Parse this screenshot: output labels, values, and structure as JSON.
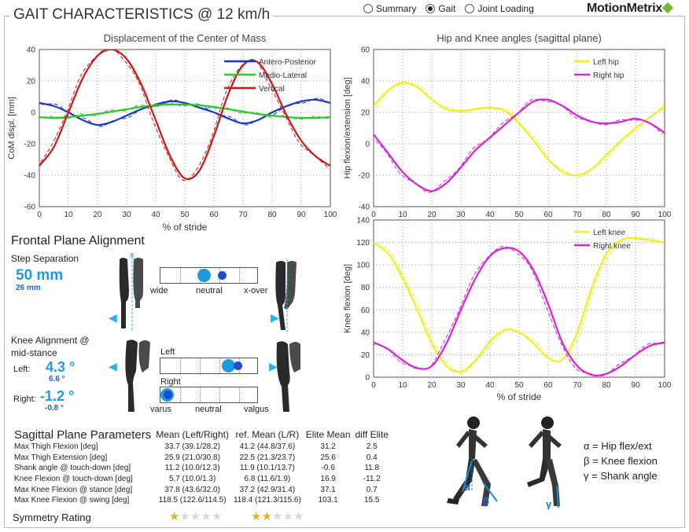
{
  "title": "GAIT CHARACTERISTICS @ 12 km/h",
  "views": [
    "Summary",
    "Gait",
    "Joint Loading"
  ],
  "selected_view": "Gait",
  "logo": "MotionMetrix",
  "charts": [
    {
      "type": "line",
      "title": "Displacement of the Center of Mass",
      "xlabel": "% of stride",
      "ylabel": "CoM displ. [mm]",
      "xlim": [
        0,
        100
      ],
      "ylim": [
        -60,
        40
      ],
      "xticks": [
        "0",
        "10",
        "20",
        "30",
        "40",
        "50",
        "60",
        "70",
        "80",
        "90",
        "100"
      ],
      "yticks": [
        "40",
        "20",
        "0",
        "-20",
        "-40",
        "-60"
      ],
      "grid": true,
      "legend_position": "top-right",
      "series": [
        {
          "name": "Antero-Posterior",
          "color": "#1c35c8",
          "x": [
            0,
            5,
            10,
            15,
            20,
            25,
            30,
            35,
            40,
            45,
            50,
            55,
            60,
            65,
            70,
            75,
            80,
            85,
            90,
            95,
            100
          ],
          "values": [
            6,
            4,
            0,
            -5,
            -8,
            -6,
            -2,
            2,
            5,
            7,
            6,
            3,
            0,
            -4,
            -7,
            -5,
            0,
            4,
            7,
            8,
            6
          ]
        },
        {
          "name": "Medio-Lateral",
          "color": "#2ec82e",
          "x": [
            0,
            5,
            10,
            15,
            20,
            25,
            30,
            35,
            40,
            45,
            50,
            55,
            60,
            65,
            70,
            75,
            80,
            85,
            90,
            95,
            100
          ],
          "values": [
            -3,
            -3.5,
            -3,
            -2,
            -1,
            0.5,
            2,
            3.5,
            4.5,
            5,
            5,
            4.5,
            3.5,
            2,
            0.5,
            -1,
            -2,
            -3,
            -3.5,
            -3.5,
            -3
          ]
        },
        {
          "name": "Vertical",
          "color": "#c81818",
          "x": [
            0,
            5,
            10,
            15,
            20,
            25,
            30,
            35,
            40,
            45,
            50,
            55,
            60,
            65,
            70,
            75,
            80,
            85,
            90,
            95,
            100
          ],
          "values": [
            -34,
            -22,
            0,
            22,
            36,
            40,
            34,
            18,
            -5,
            -28,
            -42,
            -37,
            -15,
            12,
            30,
            32,
            18,
            -2,
            -18,
            -28,
            -34
          ]
        }
      ]
    },
    {
      "type": "line",
      "title": "Hip and Knee angles (sagittal plane)",
      "xlabel": "",
      "ylabel": "Hip flexion/extension [deg]",
      "xlim": [
        0,
        100
      ],
      "ylim": [
        -40,
        60
      ],
      "xticks": [
        "0",
        "10",
        "20",
        "30",
        "40",
        "50",
        "60",
        "70",
        "80",
        "90",
        "100"
      ],
      "yticks": [
        "60",
        "40",
        "20",
        "0",
        "-20",
        "-40"
      ],
      "grid": true,
      "legend_position": "top-right",
      "series": [
        {
          "name": "Left hip",
          "color": "#f0f020",
          "x": [
            0,
            5,
            10,
            15,
            20,
            25,
            30,
            35,
            40,
            45,
            50,
            55,
            60,
            65,
            70,
            75,
            80,
            85,
            90,
            95,
            100
          ],
          "values": [
            24,
            34,
            39,
            36,
            28,
            22,
            21,
            22,
            23,
            21,
            13,
            2,
            -10,
            -18,
            -20,
            -16,
            -7,
            2,
            10,
            17,
            24
          ]
        },
        {
          "name": "Right hip",
          "color": "#d624d6",
          "x": [
            0,
            5,
            10,
            15,
            20,
            25,
            30,
            35,
            40,
            45,
            50,
            55,
            60,
            65,
            70,
            75,
            80,
            85,
            90,
            95,
            100
          ],
          "values": [
            6,
            -6,
            -18,
            -26,
            -30,
            -25,
            -15,
            -4,
            4,
            12,
            20,
            27,
            28,
            24,
            18,
            14,
            13,
            14,
            16,
            13,
            7
          ]
        }
      ]
    },
    {
      "type": "line",
      "title": "",
      "xlabel": "% of stride",
      "ylabel": "Knee flexion [deg]",
      "xlim": [
        0,
        100
      ],
      "ylim": [
        0,
        140
      ],
      "xticks": [
        "0",
        "10",
        "20",
        "30",
        "40",
        "50",
        "60",
        "70",
        "80",
        "90",
        "100"
      ],
      "yticks": [
        "140",
        "120",
        "100",
        "80",
        "60",
        "40",
        "20",
        "0"
      ],
      "grid": true,
      "legend_position": "top-right",
      "series": [
        {
          "name": "Left knee",
          "color": "#f0f020",
          "x": [
            0,
            5,
            10,
            15,
            20,
            25,
            30,
            35,
            40,
            45,
            50,
            55,
            60,
            65,
            70,
            75,
            80,
            85,
            90,
            95,
            100
          ],
          "values": [
            120,
            110,
            88,
            60,
            30,
            10,
            5,
            15,
            32,
            42,
            40,
            30,
            17,
            16,
            40,
            80,
            110,
            122,
            124,
            122,
            120
          ]
        },
        {
          "name": "Right knee",
          "color": "#d624d6",
          "x": [
            0,
            5,
            10,
            15,
            20,
            25,
            30,
            35,
            40,
            45,
            50,
            55,
            60,
            65,
            70,
            75,
            80,
            85,
            90,
            95,
            100
          ],
          "values": [
            31,
            25,
            15,
            8,
            10,
            30,
            60,
            88,
            108,
            115,
            112,
            95,
            65,
            30,
            10,
            2,
            3,
            10,
            20,
            28,
            31
          ]
        }
      ]
    }
  ],
  "frontal": {
    "heading": "Frontal Plane Alignment",
    "step_label": "Step Separation",
    "step_value": "50 mm",
    "step_ref": "26 mm",
    "step_scale": [
      "wide",
      "neutral",
      "x-over"
    ],
    "knee_label_line1": "Knee Alignment @",
    "knee_label_line2": "mid-stance",
    "left_label": "Left:",
    "left_value": "4.3 °",
    "left_ref": "6.6 °",
    "right_label": "Right:",
    "right_value": "-1.2 °",
    "right_ref": "-0.8 °",
    "bar_left_label": "Left",
    "bar_right_label": "Right",
    "knee_scale": [
      "varus",
      "neutral",
      "valgus"
    ],
    "step_marker": 0.45,
    "step_ref_marker": 0.64,
    "left_marker": 0.7,
    "left_ref_marker": 0.8,
    "right_marker": 0.07,
    "right_ref_marker": 0.08
  },
  "sagittal": {
    "heading": "Sagittal Plane Parameters",
    "columns": [
      "Mean (Left/Right)",
      "ref. Mean (L/R)",
      "Elite Mean",
      "diff Elite"
    ],
    "rows": [
      {
        "label": "Max Thigh Flexion [deg]",
        "mean": "33.7 (39.1/28.2)",
        "ref": "41.2 (44.8/37.6)",
        "elite": "31.2",
        "diff": "2.5"
      },
      {
        "label": "Max Thigh Extension [deg]",
        "mean": "25.9 (21.0/30.8)",
        "ref": "22.5 (21.3/23.7)",
        "elite": "25.6",
        "diff": "0.4"
      },
      {
        "label": "Shank angle @ touch-down [deg]",
        "mean": "11.2 (10.0/12.3)",
        "ref": "11.9 (10.1/13.7)",
        "elite": "-0.6",
        "diff": "11.8"
      },
      {
        "label": "Knee Flexion @ touch-down [deg]",
        "mean": "5.7 (10.0/1.3)",
        "ref": "6.8 (11.6/1.9)",
        "elite": "16.9",
        "diff": "-11.2"
      },
      {
        "label": "Max Knee Flexion @ stance [deg]",
        "mean": "37.8 (43.6/32.0)",
        "ref": "37.2 (42.9/31.4)",
        "elite": "37.1",
        "diff": "0.7"
      },
      {
        "label": "Max Knee Flexion @ swing [deg]",
        "mean": "118.5 (122.6/114.5)",
        "ref": "118.4 (121.3/115.6)",
        "elite": "103.1",
        "diff": "15.5"
      }
    ],
    "symmetry_label": "Symmetry Rating",
    "symmetry_stars": 1,
    "ref_symmetry_stars": 2,
    "max_stars": 5
  },
  "angle_legend": {
    "alpha": "α = Hip flex/ext",
    "beta": "β = Knee flexion",
    "gamma": "γ = Shank angle",
    "alpha_symbol": "α",
    "beta_symbol": "β",
    "gamma_symbol": "γ"
  }
}
